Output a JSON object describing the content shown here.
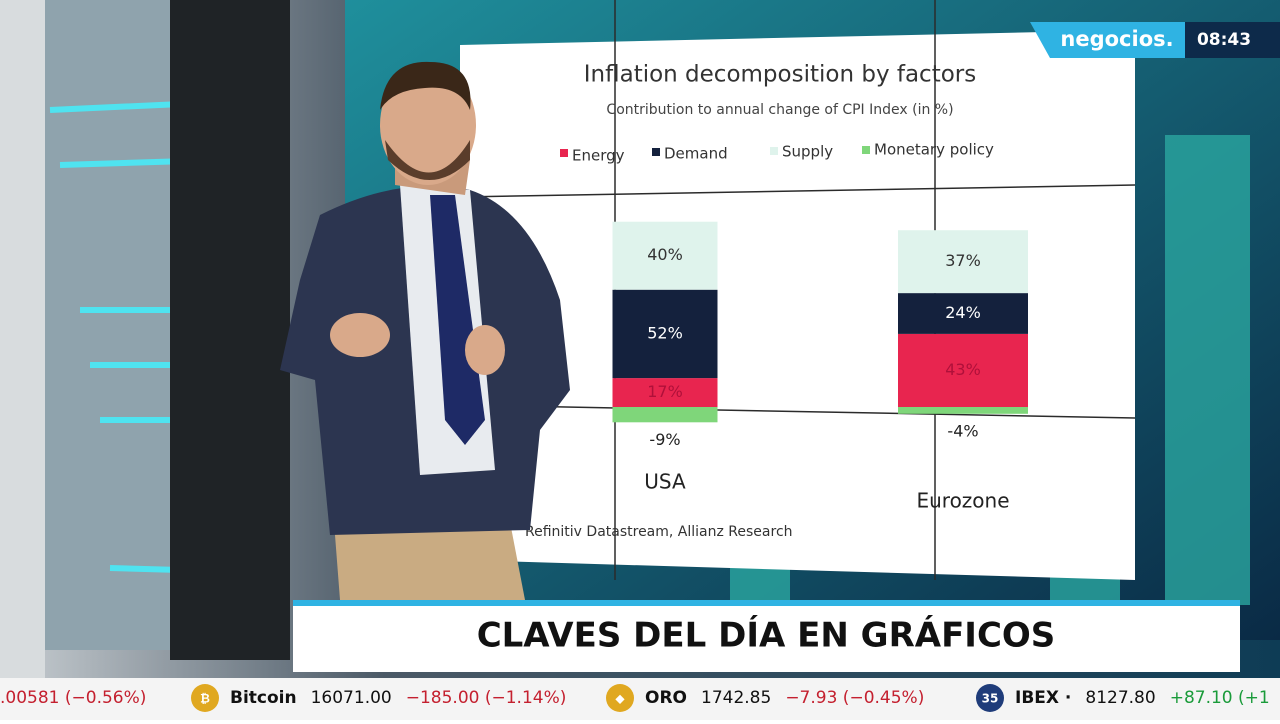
{
  "chart_data": {
    "type": "stacked-bar",
    "title": "Inflation decomposition by factors",
    "subtitle": "Contribution to annual change of CPI Index (in %)",
    "categories": [
      "USA",
      "Eurozone"
    ],
    "series": [
      {
        "name": "Energy",
        "color": "#e8254f",
        "values": [
          17,
          43
        ],
        "value_labels": [
          "17%",
          "43%"
        ]
      },
      {
        "name": "Demand",
        "color": "#14213d",
        "values": [
          52,
          24
        ],
        "value_labels": [
          "52%",
          "24%"
        ]
      },
      {
        "name": "Supply",
        "color": "#dff3ec",
        "values": [
          40,
          37
        ],
        "value_labels": [
          "40%",
          "37%"
        ]
      },
      {
        "name": "Monetary policy",
        "color": "#7fd67a",
        "values": [
          -9,
          -4
        ],
        "value_labels": [
          "-9%",
          "-4%"
        ]
      }
    ],
    "source": "Refinitiv Datastream, Allianz Research"
  },
  "broadcast": {
    "logo": "negocios.",
    "time": "08:43",
    "headline": "CLAVES DEL DÍA EN GRÁFICOS",
    "ticker": [
      {
        "text": ".00581 (−0.56%)"
      },
      {
        "badge": "₿",
        "name": "Bitcoin",
        "price": "16071.00",
        "change": "−185.00 (−1.14%)"
      },
      {
        "badge": "◆",
        "name": "ORO",
        "price": "1742.85",
        "change": "−7.93 (−0.45%)"
      },
      {
        "badge": "35",
        "name": "IBEX ·",
        "price": "8127.80",
        "change": "+87.10 (+1"
      }
    ]
  }
}
